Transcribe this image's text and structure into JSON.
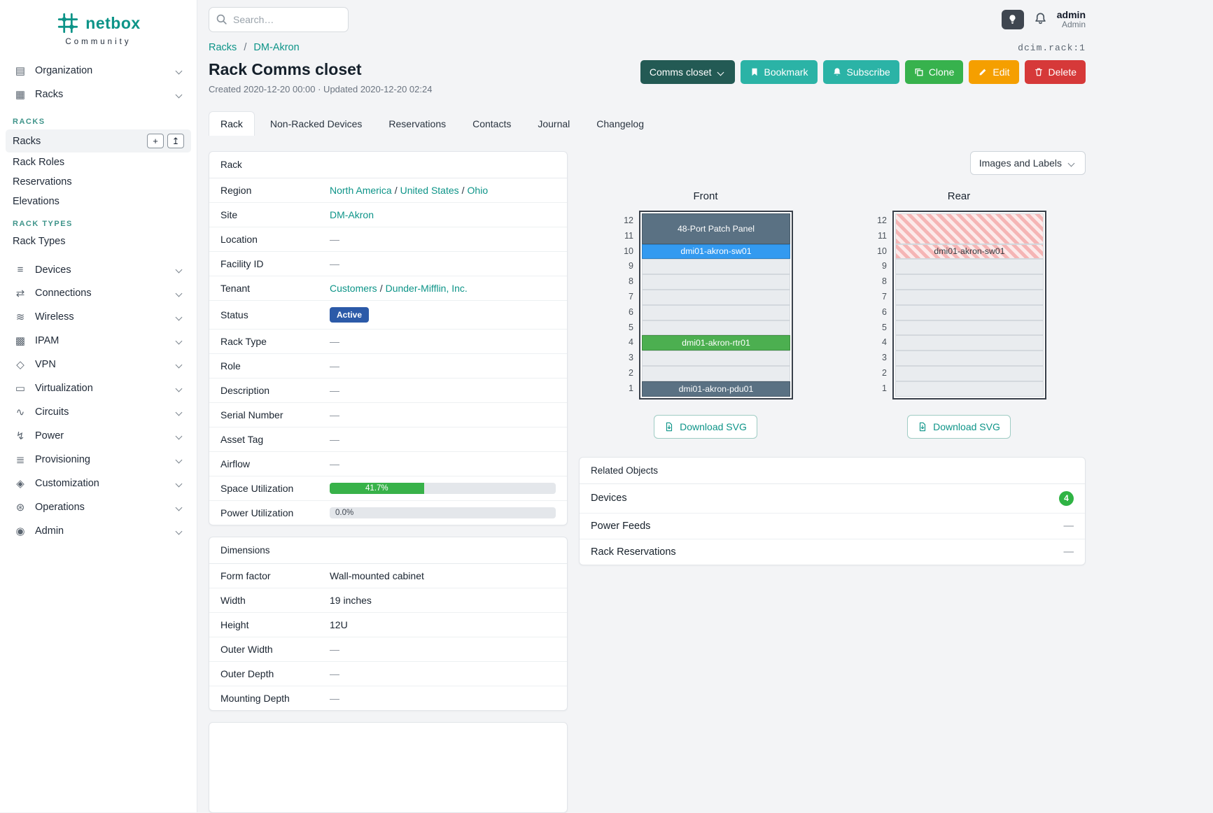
{
  "ui": {
    "sep": "/"
  },
  "icons": {
    "add": "+",
    "import": "↥",
    "organization": "▤",
    "racks": "▦",
    "devices": "≡",
    "connections": "⇄",
    "wireless": "≋",
    "ipam": "▩",
    "vpn": "◇",
    "virtualization": "▭",
    "circuits": "∿",
    "power": "↯",
    "provisioning": "≣",
    "customization": "◈",
    "operations": "⊛",
    "admin": "◉"
  },
  "brand": {
    "name": "netbox",
    "subtitle": "Community"
  },
  "topbar": {
    "search_placeholder": "Search…",
    "user": {
      "name": "admin",
      "role": "Admin"
    }
  },
  "sidebar": {
    "organization": "Organization",
    "racks": "Racks",
    "sections": [
      {
        "title": "RACKS",
        "items": [
          "Racks",
          "Rack Roles",
          "Reservations",
          "Elevations"
        ]
      },
      {
        "title": "RACK TYPES",
        "items": [
          "Rack Types"
        ]
      }
    ],
    "items": [
      "Devices",
      "Connections",
      "Wireless",
      "IPAM",
      "VPN",
      "Virtualization",
      "Circuits",
      "Power",
      "Provisioning",
      "Customization",
      "Operations",
      "Admin"
    ]
  },
  "page": {
    "breadcrumb": {
      "parent": "Racks",
      "current": "DM-Akron"
    },
    "object_ref": "dcim.rack:1",
    "title": "Rack Comms closet",
    "subtitle": "Created 2020-12-20 00:00 · Updated 2020-12-20 02:24",
    "actions": {
      "context": "Comms closet",
      "bookmark": "Bookmark",
      "subscribe": "Subscribe",
      "clone": "Clone",
      "edit": "Edit",
      "delete": "Delete"
    },
    "tabs": [
      "Rack",
      "Non-Racked Devices",
      "Reservations",
      "Contacts",
      "Journal",
      "Changelog"
    ]
  },
  "rack_card": {
    "title": "Rack",
    "rows": {
      "region": {
        "label": "Region",
        "links": [
          "North America",
          "United States",
          "Ohio"
        ]
      },
      "site": {
        "label": "Site",
        "links": [
          "DM-Akron"
        ]
      },
      "location": {
        "label": "Location",
        "value": "—"
      },
      "facility": {
        "label": "Facility ID",
        "value": "—"
      },
      "tenant": {
        "label": "Tenant",
        "links": [
          "Customers",
          "Dunder-Mifflin, Inc."
        ]
      },
      "status": {
        "label": "Status",
        "badge": "Active",
        "badge_color": "#2c5aa8"
      },
      "rack_type": {
        "label": "Rack Type",
        "value": "—"
      },
      "role": {
        "label": "Role",
        "value": "—"
      },
      "description": {
        "label": "Description",
        "value": "—"
      },
      "serial": {
        "label": "Serial Number",
        "value": "—"
      },
      "asset": {
        "label": "Asset Tag",
        "value": "—"
      },
      "airflow": {
        "label": "Airflow",
        "value": "—"
      },
      "space": {
        "label": "Space Utilization",
        "percent": 41.7,
        "percent_label": "41.7%",
        "color": "#38b249"
      },
      "power": {
        "label": "Power Utilization",
        "percent": 0,
        "percent_label": "0.0%"
      }
    }
  },
  "dimensions_card": {
    "title": "Dimensions",
    "rows": {
      "form_factor": {
        "label": "Form factor",
        "value": "Wall-mounted cabinet"
      },
      "width": {
        "label": "Width",
        "value": "19 inches"
      },
      "height": {
        "label": "Height",
        "value": "12U"
      },
      "outer_width": {
        "label": "Outer Width",
        "value": "—"
      },
      "outer_depth": {
        "label": "Outer Depth",
        "value": "—"
      },
      "mounting_depth": {
        "label": "Mounting Depth",
        "value": "—"
      }
    }
  },
  "elevations": {
    "toolbar_label": "Images and Labels",
    "download_label": "Download SVG",
    "units": [
      "12",
      "11",
      "10",
      "9",
      "8",
      "7",
      "6",
      "5",
      "4",
      "3",
      "2",
      "1"
    ],
    "front": {
      "title": "Front",
      "devices": [
        {
          "name": "48-Port Patch Panel",
          "position": "U11-U12",
          "color": "#5a7183"
        },
        {
          "name": "dmi01-akron-sw01",
          "position": "U10",
          "color": "#339af0"
        },
        {
          "name": "dmi01-akron-rtr01",
          "position": "U4",
          "color": "#4caf50"
        },
        {
          "name": "dmi01-akron-pdu01",
          "position": "U1",
          "color": "#5a7183"
        }
      ]
    },
    "rear": {
      "title": "Rear",
      "devices": [
        {
          "name": "48-Port Patch Panel",
          "position": "U11-U12",
          "style": "striped",
          "label_visible": false
        },
        {
          "name": "dmi01-akron-sw01",
          "position": "U10",
          "style": "striped",
          "label_visible": true
        }
      ]
    }
  },
  "related_card": {
    "title": "Related Objects",
    "rows": [
      {
        "label": "Devices",
        "count": "4"
      },
      {
        "label": "Power Feeds",
        "value": "—"
      },
      {
        "label": "Rack Reservations",
        "value": "—"
      }
    ]
  }
}
